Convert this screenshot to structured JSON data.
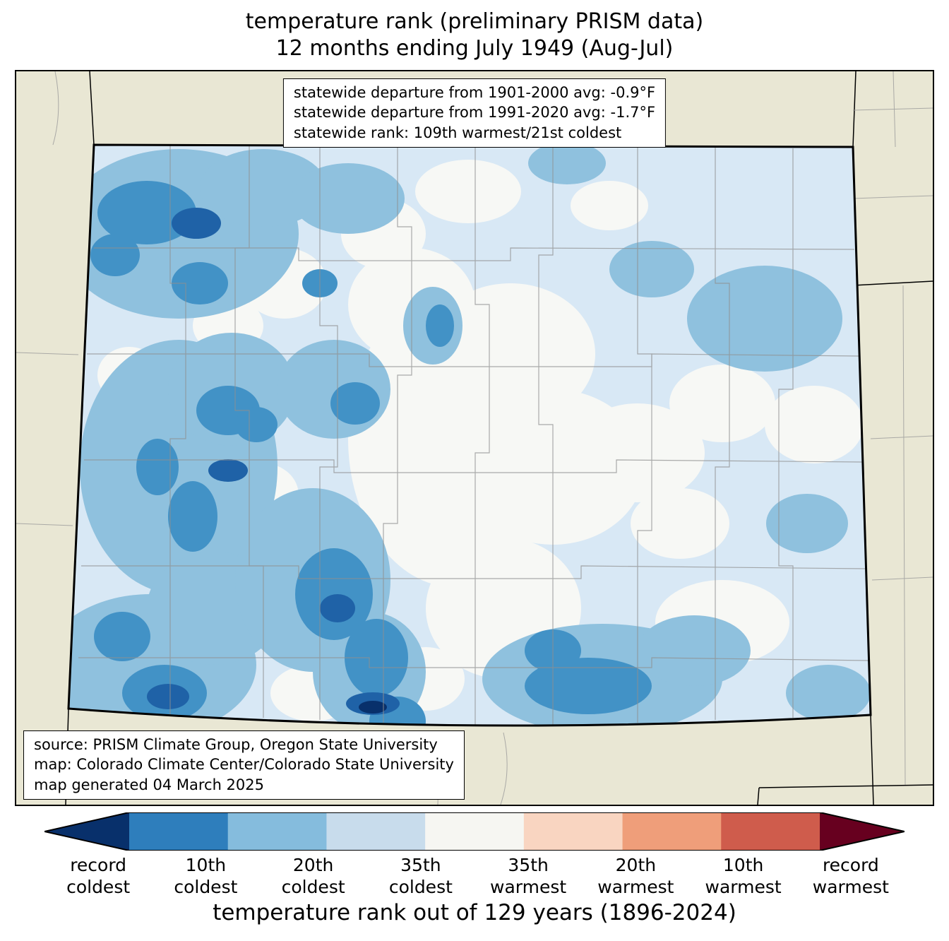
{
  "title": {
    "line1": "temperature rank (preliminary PRISM data)",
    "line2": "12 months ending July 1949 (Aug-Jul)"
  },
  "stats_box": {
    "lines": [
      "statewide departure from 1901-2000 avg: -0.9°F",
      "statewide departure from 1991-2020 avg: -1.7°F",
      "statewide rank: 109th warmest/21st coldest"
    ]
  },
  "source_box": {
    "lines": [
      "source: PRISM Climate Group, Oregon State University",
      "map: Colorado Climate Center/Colorado State University",
      "map generated 04 March 2025"
    ]
  },
  "map": {
    "background_color": "#e9e7d4",
    "state_fill_base": "#d8e8f5",
    "palette": {
      "near_white": "#f7f8f5",
      "light_blue": "#cfe2f1",
      "medium_blue": "#8fc1de",
      "dark_blue": "#4292c6",
      "navy": "#1f62a7",
      "record_navy": "#08306b",
      "county_line": "#909090",
      "state_line": "#000000"
    }
  },
  "colorbar": {
    "caption": "temperature rank out of 129 years (1896-2024)",
    "segments": [
      {
        "name": "record-coldest-arrow",
        "color": "#08306b"
      },
      {
        "name": "10th-coldest",
        "color": "#2e7ebc"
      },
      {
        "name": "20th-coldest",
        "color": "#85bcdd"
      },
      {
        "name": "35th-coldest",
        "color": "#c8dcec"
      },
      {
        "name": "middle",
        "color": "#f6f6f2"
      },
      {
        "name": "35th-warmest",
        "color": "#f9d5c1"
      },
      {
        "name": "20th-warmest",
        "color": "#ef9e7a"
      },
      {
        "name": "10th-warmest",
        "color": "#cf5c4c"
      },
      {
        "name": "record-warmest-arrow",
        "color": "#67001f"
      }
    ],
    "labels": [
      {
        "line1": "record",
        "line2": "coldest"
      },
      {
        "line1": "10th",
        "line2": "coldest"
      },
      {
        "line1": "20th",
        "line2": "coldest"
      },
      {
        "line1": "35th",
        "line2": "coldest"
      },
      {
        "line1": "35th",
        "line2": "warmest"
      },
      {
        "line1": "20th",
        "line2": "warmest"
      },
      {
        "line1": "10th",
        "line2": "warmest"
      },
      {
        "line1": "record",
        "line2": "warmest"
      }
    ]
  }
}
